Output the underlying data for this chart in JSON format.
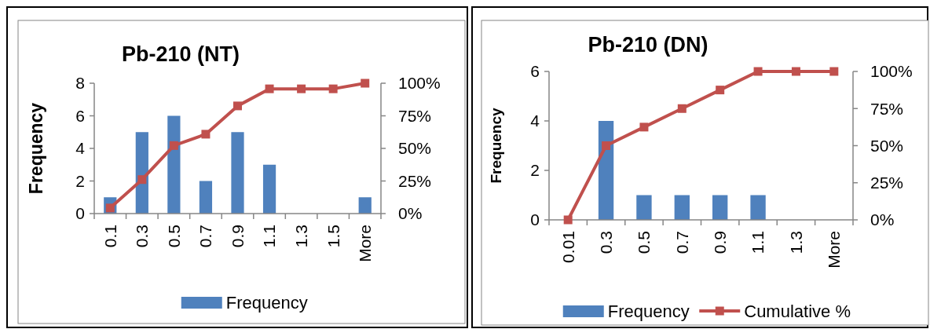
{
  "chart_data": [
    {
      "type": "bar",
      "title": "Pb-210 (NT)",
      "ylabel": "Frequency",
      "categories": [
        "0.1",
        "0.3",
        "0.5",
        "0.7",
        "0.9",
        "1.1",
        "1.3",
        "1.5",
        "More"
      ],
      "series": [
        {
          "name": "Frequency",
          "color": "#4f81bd",
          "values": [
            1,
            5,
            6,
            2,
            5,
            3,
            0,
            0,
            1
          ]
        },
        {
          "type": "line",
          "axis": "y2",
          "color": "#c0504d",
          "values": [
            4.3,
            26.1,
            52.2,
            60.9,
            82.6,
            95.7,
            95.7,
            95.7,
            100
          ]
        }
      ],
      "ylim": [
        0,
        8
      ],
      "yticks": [
        0,
        2,
        4,
        6,
        8
      ],
      "y2lim": [
        0,
        100
      ],
      "y2ticks": [
        {
          "value": 0,
          "label": "0%"
        },
        {
          "value": 25,
          "label": "25%"
        },
        {
          "value": 50,
          "label": "50%"
        },
        {
          "value": 75,
          "label": "75%"
        },
        {
          "value": 100,
          "label": "100%"
        }
      ],
      "marker": "square",
      "legend": "bottom"
    },
    {
      "type": "bar",
      "title": "Pb-210 (DN)",
      "ylabel": "Frequency",
      "categories": [
        "0.01",
        "0.3",
        "0.5",
        "0.7",
        "0.9",
        "1.1",
        "1.3",
        "More"
      ],
      "series": [
        {
          "name": "Frequency",
          "color": "#4f81bd",
          "values": [
            0,
            4,
            1,
            1,
            1,
            1,
            0,
            0
          ]
        },
        {
          "name": "Cumulative %",
          "type": "line",
          "axis": "y2",
          "color": "#c0504d",
          "values": [
            0,
            50,
            62.5,
            75,
            87.5,
            100,
            100,
            100
          ]
        }
      ],
      "ylim": [
        0,
        6
      ],
      "yticks": [
        0,
        2,
        4,
        6
      ],
      "y2lim": [
        0,
        100
      ],
      "y2ticks": [
        {
          "value": 0,
          "label": "0%"
        },
        {
          "value": 25,
          "label": "25%"
        },
        {
          "value": 50,
          "label": "50%"
        },
        {
          "value": 75,
          "label": "75%"
        },
        {
          "value": 100,
          "label": "100%"
        }
      ],
      "marker": "square",
      "legend": "bottom"
    }
  ]
}
